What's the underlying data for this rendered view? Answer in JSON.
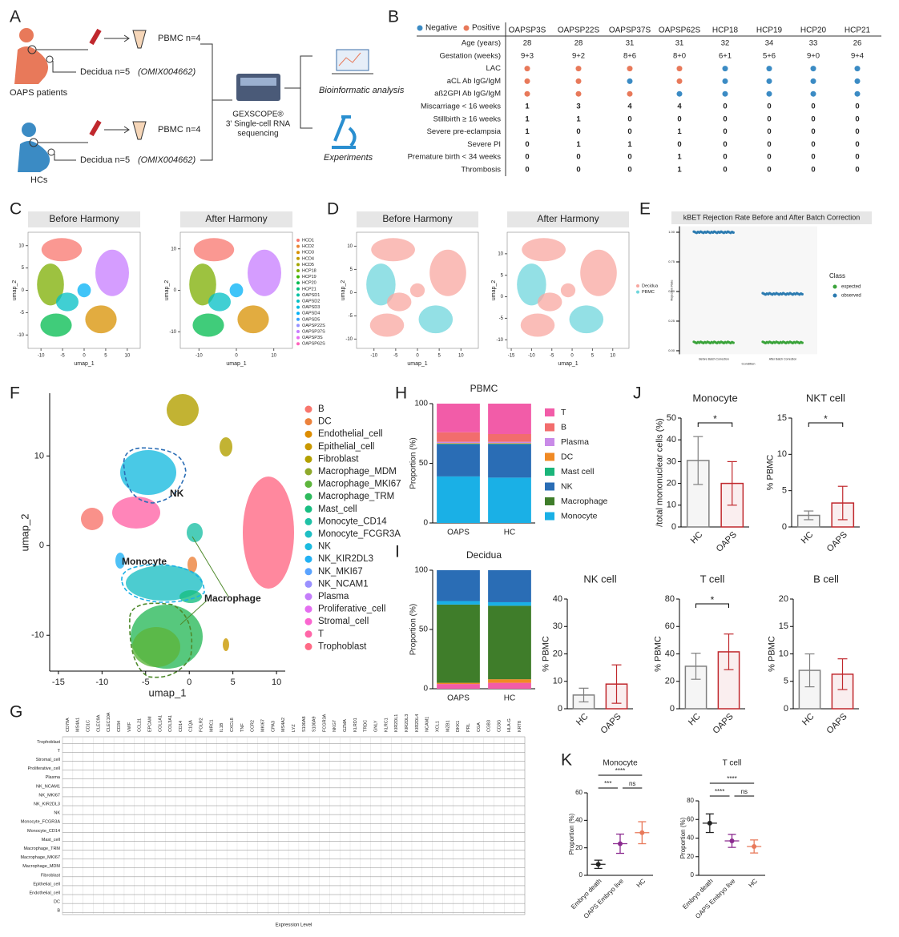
{
  "panel_labels": {
    "a": "A",
    "b": "B",
    "c": "C",
    "d": "D",
    "e": "E",
    "f": "F",
    "g": "G",
    "h": "H",
    "i": "I",
    "j": "J",
    "k": "K"
  },
  "panel_a": {
    "oaps_pbmc": "PBMC n=4",
    "oaps_decidua": "Decidua n=5",
    "oaps_decidua_id": "(OMIX004662)",
    "oaps": "OAPS patients",
    "hc_pbmc": "PBMC n=4",
    "hc_decidua": "Decidua n=5",
    "hc_decidua_id": "(OMIX004662)",
    "hc": "HCs",
    "platform": "GEXSCOPE®",
    "platform_sub1": "3' Single-cell RNA",
    "platform_sub2": "sequencing",
    "analysis": "Bioinformatic analysis",
    "experiments": "Experiments"
  },
  "panel_b": {
    "legend": [
      "Negative",
      "Positive"
    ],
    "colors": {
      "negative": "#3b8bc4",
      "positive": "#e8795a"
    },
    "columns": [
      "OAPSP3S",
      "OAPSP22S",
      "OAPSP37S",
      "OAPSP62S",
      "HCP18",
      "HCP19",
      "HCP20",
      "HCP21"
    ],
    "rows": [
      {
        "label": "Age (years)",
        "cells": [
          28,
          28,
          31,
          31,
          32,
          34,
          33,
          26
        ]
      },
      {
        "label": "Gestation (weeks)",
        "cells": [
          "9+3",
          "9+2",
          "8+6",
          "8+0",
          "6+1",
          "5+6",
          "9+0",
          "9+4"
        ]
      },
      {
        "label": "LAC",
        "dots": [
          1,
          1,
          1,
          1,
          0,
          0,
          0,
          0
        ]
      },
      {
        "label": "aCL Ab IgG/IgM",
        "dots": [
          1,
          1,
          0,
          1,
          0,
          0,
          0,
          0
        ]
      },
      {
        "label": "aß2GPI Ab IgG/IgM",
        "dots": [
          1,
          1,
          1,
          0,
          0,
          0,
          0,
          0
        ]
      },
      {
        "label": "Miscarriage < 16 weeks",
        "counts": [
          1,
          3,
          4,
          4,
          0,
          0,
          0,
          0
        ]
      },
      {
        "label": "Stillbirth ≥ 16 weeks",
        "counts": [
          1,
          1,
          0,
          0,
          0,
          0,
          0,
          0
        ]
      },
      {
        "label": "Severe pre-eclampsia",
        "counts": [
          1,
          0,
          0,
          1,
          0,
          0,
          0,
          0
        ]
      },
      {
        "label": "Severe PI",
        "counts": [
          0,
          1,
          1,
          0,
          0,
          0,
          0,
          0
        ]
      },
      {
        "label": "Premature birth < 34 weeks",
        "counts": [
          0,
          0,
          0,
          1,
          0,
          0,
          0,
          0
        ]
      },
      {
        "label": "Thrombosis",
        "counts": [
          0,
          0,
          0,
          1,
          0,
          0,
          0,
          0
        ]
      }
    ]
  },
  "panel_c": {
    "xlabel": "umap_1",
    "ylabel": "umap_2",
    "plots": [
      {
        "title": "Before Harmony",
        "xlim": [
          -13,
          13
        ],
        "ylim": [
          -13,
          13
        ],
        "xticks": [
          -10,
          -5,
          0,
          5,
          10
        ],
        "yticks": [
          -10,
          -5,
          0,
          5,
          10
        ]
      },
      {
        "title": "After Harmony",
        "xlim": [
          -15,
          15
        ],
        "ylim": [
          -14,
          14
        ],
        "xticks": [
          -10,
          0,
          10
        ],
        "yticks": [
          -10,
          0,
          10
        ]
      }
    ],
    "legend": [
      {
        "name": "HCD1",
        "color": "#f8766d"
      },
      {
        "name": "HCD2",
        "color": "#ea8331"
      },
      {
        "name": "HCD3",
        "color": "#d89000"
      },
      {
        "name": "HCD4",
        "color": "#c09b00"
      },
      {
        "name": "HCD5",
        "color": "#a3a500"
      },
      {
        "name": "HCP18",
        "color": "#7cae00"
      },
      {
        "name": "HCP19",
        "color": "#39b600"
      },
      {
        "name": "HCP20",
        "color": "#00bb4e"
      },
      {
        "name": "HCP21",
        "color": "#00bf7d"
      },
      {
        "name": "OAPSD1",
        "color": "#00c1a3"
      },
      {
        "name": "OAPSD2",
        "color": "#00bfc4"
      },
      {
        "name": "OAPSD3",
        "color": "#00bae0"
      },
      {
        "name": "OAPSD4",
        "color": "#00b0f6"
      },
      {
        "name": "OAPSD5",
        "color": "#35a2ff"
      },
      {
        "name": "OAPSP22S",
        "color": "#9590ff"
      },
      {
        "name": "OAPSP37S",
        "color": "#c77cff"
      },
      {
        "name": "OAPSP3S",
        "color": "#e76bf3"
      },
      {
        "name": "OAPSP62S",
        "color": "#ff62bc"
      }
    ]
  },
  "panel_d": {
    "xlabel": "umap_1",
    "ylabel": "umap_2",
    "plots": [
      {
        "title": "Before Harmony",
        "xlim": [
          -14,
          14
        ],
        "ylim": [
          -12,
          13
        ],
        "xticks": [
          -10,
          -5,
          0,
          5,
          10
        ],
        "yticks": [
          -10,
          -5,
          0,
          5,
          10
        ]
      },
      {
        "title": "After Harmony",
        "xlim": [
          -16,
          14
        ],
        "ylim": [
          -12,
          15
        ],
        "xticks": [
          -15,
          -10,
          -5,
          0,
          5,
          10
        ],
        "yticks": [
          -10,
          -5,
          0,
          5,
          10
        ]
      }
    ],
    "legend": [
      {
        "name": "Decidua",
        "color": "#f8a7a0"
      },
      {
        "name": "PBMC",
        "color": "#6fd6dc"
      }
    ]
  },
  "panel_f": {
    "xlabel": "umap_1",
    "ylabel": "umap_2",
    "xlim": [
      -16,
      11
    ],
    "ylim": [
      -14,
      17
    ],
    "xticks": [
      -15,
      -10,
      -5,
      0,
      5,
      10
    ],
    "yticks": [
      -10,
      0,
      10
    ],
    "annotations": [
      {
        "text": "NK",
        "color": "#2a6db5"
      },
      {
        "text": "Monocyte",
        "color": "#1ab0e6"
      },
      {
        "text": "Macrophage",
        "color": "#4f8a2c"
      }
    ],
    "legend": [
      {
        "name": "B",
        "color": "#f8766d"
      },
      {
        "name": "DC",
        "color": "#ec823c"
      },
      {
        "name": "Endothelial_cell",
        "color": "#dd8d00"
      },
      {
        "name": "Epithelial_cell",
        "color": "#c99800"
      },
      {
        "name": "Fibroblast",
        "color": "#b3a000"
      },
      {
        "name": "Macrophage_MDM",
        "color": "#8fa92c"
      },
      {
        "name": "Macrophage_MKI67",
        "color": "#5db53c"
      },
      {
        "name": "Macrophage_TRM",
        "color": "#2dba5c"
      },
      {
        "name": "Mast_cell",
        "color": "#18be82"
      },
      {
        "name": "Monocyte_CD14",
        "color": "#1fc1a6"
      },
      {
        "name": "Monocyte_FCGR3A",
        "color": "#1fbfc4"
      },
      {
        "name": "NK",
        "color": "#1bbbe0"
      },
      {
        "name": "NK_KIR2DL3",
        "color": "#22b1f4"
      },
      {
        "name": "NK_MKI67",
        "color": "#5aa3ff"
      },
      {
        "name": "NK_NCAM1",
        "color": "#9a90ff"
      },
      {
        "name": "Plasma",
        "color": "#c47dfa"
      },
      {
        "name": "Proliferative_cell",
        "color": "#e46ef0"
      },
      {
        "name": "Stromal_cell",
        "color": "#fa66d0"
      },
      {
        "name": "T",
        "color": "#ff66a8"
      },
      {
        "name": "Trophoblast",
        "color": "#ff6a86"
      }
    ]
  },
  "panel_g": {
    "xlabel": "Expression Level",
    "genes": [
      "CD79A",
      "MS4A1",
      "CD1C",
      "CLEC9A",
      "CLEC10A",
      "CD34",
      "VWF",
      "CCL21",
      "EPCAM",
      "COL1A1",
      "COL3A1",
      "CD14",
      "C1QA",
      "FOLR2",
      "MRC1",
      "IL1B",
      "CXCL8",
      "TNF",
      "CCR2",
      "MKI67",
      "CPA3",
      "MS4A2",
      "LYZ",
      "S100A8",
      "S100A9",
      "FCGR3A",
      "NKG7",
      "GZMA",
      "KLRD1",
      "TRDC",
      "GNLY",
      "KLRC1",
      "KIR2DL1",
      "KIR2DL3",
      "KIR2DL4",
      "NCAM1",
      "XCL1",
      "MZB1",
      "DKK1",
      "PRL",
      "CGA",
      "CGB3",
      "CD3G",
      "HLA-G",
      "KRT8"
    ],
    "rows": [
      "Trophoblast",
      "T",
      "Stromal_cell",
      "Proliferative_cell",
      "Plasma",
      "NK_NCAM1",
      "NK_MKI67",
      "NK_KIR2DL3",
      "NK",
      "Monocyte_FCGR3A",
      "Monocyte_CD14",
      "Mast_cell",
      "Macrophage_TRM",
      "Macrophage_MKI67",
      "Macrophage_MDM",
      "Fibroblast",
      "Epithelial_cell",
      "Endothelial_cell",
      "DC",
      "B"
    ]
  },
  "chart_data": [
    {
      "type": "strip",
      "title": "kBET Rejection Rate Before and After Batch Correction",
      "categories": [
        "Before Batch Correction",
        "After Batch Correction"
      ],
      "series": [
        {
          "name": "expected",
          "color": "#3aa33a",
          "values": [
            0.07,
            0.07
          ]
        },
        {
          "name": "observed",
          "color": "#2a7ab0",
          "values": [
            1.0,
            0.48
          ]
        }
      ],
      "ylim": [
        -0.03,
        1.05
      ],
      "yticks": [
        {
          "value": 0,
          "label": "0.00"
        },
        {
          "value": 0.25,
          "label": "0.25"
        },
        {
          "value": 0.5,
          "label": "0.50"
        },
        {
          "value": 0.75,
          "label": "0.75"
        },
        {
          "value": 1,
          "label": "1.00"
        }
      ],
      "xlabel": "Condition",
      "ylabel": "Rejection Rate",
      "legend_title": "Class"
    },
    {
      "type": "stacked_bar",
      "title": "PBMC",
      "categories": [
        "OAPS",
        "HC"
      ],
      "ylabel": "Proportion (%)",
      "ylim": [
        0,
        100
      ],
      "yticks": [
        0,
        50,
        100
      ],
      "series": [
        {
          "name": "Monocyte",
          "color": "#1ab0e6",
          "values": [
            39,
            38
          ]
        },
        {
          "name": "Macrophage",
          "color": "#3f7d2a",
          "values": [
            0,
            0
          ]
        },
        {
          "name": "NK",
          "color": "#2a6db5",
          "values": [
            27,
            28
          ]
        },
        {
          "name": "Mast cell",
          "color": "#1bb57a",
          "values": [
            0.5,
            0.5
          ]
        },
        {
          "name": "DC",
          "color": "#f08a24",
          "values": [
            0.5,
            0.5
          ]
        },
        {
          "name": "Plasma",
          "color": "#c98be8",
          "values": [
            1,
            1
          ]
        },
        {
          "name": "B",
          "color": "#f26d6d",
          "values": [
            8,
            6.5
          ]
        },
        {
          "name": "T",
          "color": "#f25ca8",
          "values": [
            24,
            25.5
          ]
        }
      ]
    },
    {
      "type": "stacked_bar",
      "title": "Decidua",
      "categories": [
        "OAPS",
        "HC"
      ],
      "ylabel": "Proportion (%)",
      "ylim": [
        0,
        100
      ],
      "yticks": [
        0,
        50,
        100
      ],
      "series": [
        {
          "color": "#f25ca8",
          "values": [
            4,
            5
          ]
        },
        {
          "color": "#f08a24",
          "values": [
            1,
            3
          ]
        },
        {
          "color": "#3f7d2a",
          "values": [
            66,
            62
          ]
        },
        {
          "color": "#1ab0e6",
          "values": [
            3,
            3
          ]
        },
        {
          "color": "#2a6db5",
          "values": [
            26,
            27
          ]
        }
      ]
    },
    {
      "type": "bar",
      "title": "Monocyte",
      "ylabel": "/total mononuclear cells (%)",
      "categories": [
        "HC",
        "OAPS"
      ],
      "values": [
        30.5,
        20
      ],
      "errors": [
        11,
        10
      ],
      "colors": [
        "#7f7f7f",
        "#c0282d"
      ],
      "ylim": [
        0,
        50
      ],
      "yticks": [
        0,
        10,
        20,
        30,
        40,
        50
      ],
      "annotation": "*"
    },
    {
      "type": "bar",
      "title": "NKT cell",
      "ylabel": "% PBMC",
      "categories": [
        "HC",
        "OAPS"
      ],
      "values": [
        1.6,
        3.3
      ],
      "errors": [
        0.6,
        2.3
      ],
      "colors": [
        "#7f7f7f",
        "#c0282d"
      ],
      "ylim": [
        0,
        15
      ],
      "yticks": [
        0,
        5,
        10,
        15
      ],
      "annotation": "*"
    },
    {
      "type": "bar",
      "title": "NK cell",
      "ylabel": "% PBMC",
      "categories": [
        "HC",
        "OAPS"
      ],
      "values": [
        5,
        9
      ],
      "errors": [
        2.5,
        7
      ],
      "colors": [
        "#7f7f7f",
        "#c0282d"
      ],
      "ylim": [
        0,
        40
      ],
      "yticks": [
        0,
        10,
        20,
        30,
        40
      ]
    },
    {
      "type": "bar",
      "title": "T cell",
      "ylabel": "% PBMC",
      "categories": [
        "HC",
        "OAPS"
      ],
      "values": [
        31,
        41.5
      ],
      "errors": [
        9.5,
        13
      ],
      "colors": [
        "#7f7f7f",
        "#c0282d"
      ],
      "ylim": [
        0,
        80
      ],
      "yticks": [
        0,
        20,
        40,
        60,
        80
      ],
      "annotation": "*"
    },
    {
      "type": "bar",
      "title": "B cell",
      "ylabel": "% PBMC",
      "categories": [
        "HC",
        "OAPS"
      ],
      "values": [
        7,
        6.3
      ],
      "errors": [
        3,
        2.8
      ],
      "colors": [
        "#7f7f7f",
        "#c0282d"
      ],
      "ylim": [
        0,
        20
      ],
      "yticks": [
        0,
        5,
        10,
        15,
        20
      ]
    },
    {
      "type": "dot",
      "title": "Monocyte",
      "ylabel": "Proportion (%)",
      "categories": [
        "Embryo death",
        "OAPS Embryo live",
        "HC"
      ],
      "values": [
        8,
        23,
        31
      ],
      "errors": [
        3,
        7,
        8
      ],
      "colors": [
        "#222222",
        "#8b2a8f",
        "#e8795a"
      ],
      "ylim": [
        0,
        60
      ],
      "yticks": [
        0,
        20,
        40,
        60
      ],
      "annotations": [
        "****",
        "***",
        "ns"
      ]
    },
    {
      "type": "dot",
      "title": "T cell",
      "ylabel": "Proportion (%)",
      "categories": [
        "Embryo death",
        "OAPS Embryo live",
        "HC"
      ],
      "values": [
        56,
        37,
        31
      ],
      "errors": [
        10,
        7,
        7
      ],
      "colors": [
        "#222222",
        "#8b2a8f",
        "#e8795a"
      ],
      "ylim": [
        0,
        80
      ],
      "yticks": [
        0,
        20,
        40,
        60,
        80
      ],
      "annotations": [
        "****",
        "****",
        "ns"
      ]
    }
  ]
}
